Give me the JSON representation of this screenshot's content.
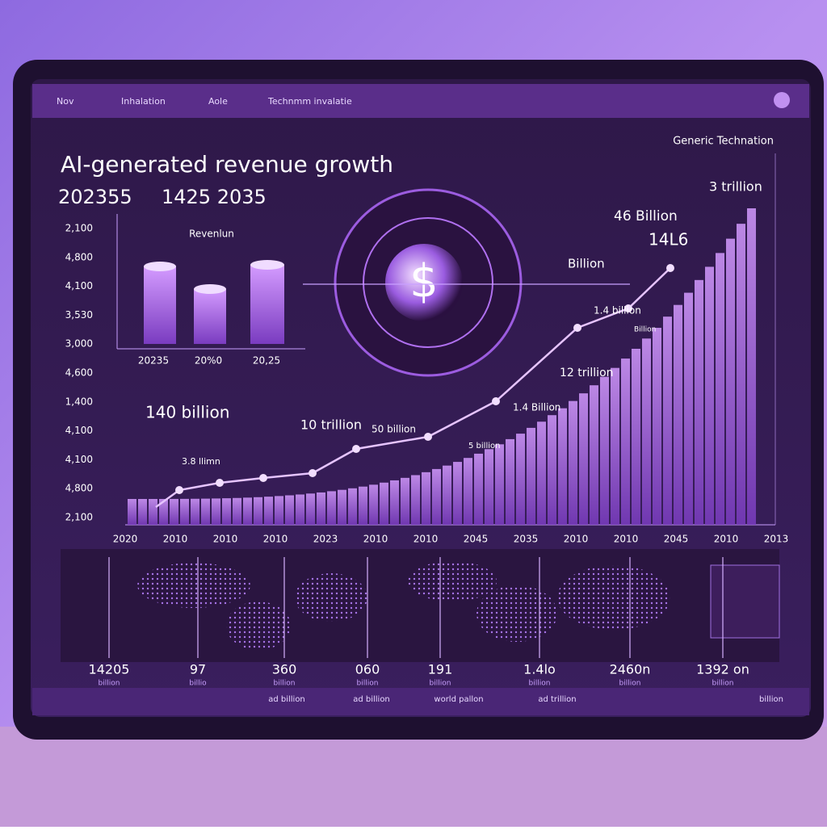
{
  "nav": [
    "Nov",
    "Inhalation",
    "Aole",
    "Technmm invalatie"
  ],
  "brand": "Generic Technation",
  "title": "AI-generated revenue growth",
  "subtitle": [
    "202355",
    "1425 2035"
  ],
  "y_axis_labels": [
    "2,100",
    "4,800",
    "4,100",
    "3,530",
    "3,000",
    "4,600",
    "1,400",
    "4,100",
    "4,100",
    "4,800",
    "2,100"
  ],
  "inset": {
    "label": "Revenlun",
    "categories": [
      "20235",
      "20%0",
      "20,25"
    ]
  },
  "annotations": [
    "140 billion",
    "10 trillion",
    "50 billion",
    "5 billion",
    "1.4 Billion",
    "12 trillion",
    "1.4 billion",
    "Billion",
    "46 Billion",
    "14L6",
    "3 trillion",
    "3.8 llimn",
    "Billion"
  ],
  "x_axis_labels": [
    "2020",
    "2010",
    "2010",
    "2010",
    "2023",
    "2010",
    "2010",
    "2045",
    "2035",
    "2010",
    "2010",
    "2045",
    "2010",
    "2013"
  ],
  "map_labels": [
    {
      "value": "14205",
      "sub": "billion"
    },
    {
      "value": "97",
      "sub": "billio"
    },
    {
      "value": "360",
      "sub": "billion"
    },
    {
      "value": "060",
      "sub": "billion"
    },
    {
      "value": "191",
      "sub": "billion"
    },
    {
      "value": "1.4lo",
      "sub": "billion"
    },
    {
      "value": "2460n",
      "sub": "billion"
    },
    {
      "value": "1392 on",
      "sub": "billion"
    }
  ],
  "footer": [
    "ad billion",
    "ad billion",
    "world pallon",
    "ad trillion",
    "billion"
  ]
}
